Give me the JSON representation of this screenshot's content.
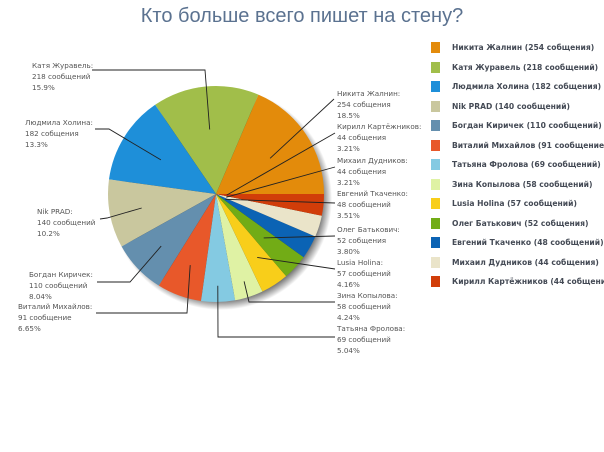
{
  "title": "Кто больше всего пишет на стену?",
  "chart_data": {
    "type": "pie",
    "title": "Кто больше всего пишет на стену?",
    "unit": "сообщений",
    "legend_position": "right",
    "start_angle": "3 o'clock, counter-clockwise",
    "slices": [
      {
        "name": "Никита Жалнин",
        "value": 254,
        "percent": 18.5,
        "color": "#e38b0b"
      },
      {
        "name": "Катя Журавель",
        "value": 218,
        "percent": 15.9,
        "color": "#a1be4a"
      },
      {
        "name": "Людмила Холина",
        "value": 182,
        "percent": 13.3,
        "color": "#1e8fd9"
      },
      {
        "name": "Nik PRAD",
        "value": 140,
        "percent": 10.2,
        "color": "#c9c79e"
      },
      {
        "name": "Богдан Киричек",
        "value": 110,
        "percent": 8.04,
        "color": "#648fae"
      },
      {
        "name": "Виталий Михайлов",
        "value": 91,
        "percent": 6.65,
        "color": "#e8582a"
      },
      {
        "name": "Татьяна Фролова",
        "value": 69,
        "percent": 5.04,
        "color": "#84cae2"
      },
      {
        "name": "Зина Копылова",
        "value": 58,
        "percent": 4.24,
        "color": "#dff2a4"
      },
      {
        "name": "Lusia Holina",
        "value": 57,
        "percent": 4.16,
        "color": "#f8ce1a"
      },
      {
        "name": "Олег Батькович",
        "value": 52,
        "percent": 3.8,
        "color": "#72ac16"
      },
      {
        "name": "Евгений Ткаченко",
        "value": 48,
        "percent": 3.51,
        "color": "#0b63b4"
      },
      {
        "name": "Михаил Дудников",
        "value": 44,
        "percent": 3.21,
        "color": "#eae4c9"
      },
      {
        "name": "Кирилл Картёжников",
        "value": 44,
        "percent": 3.21,
        "color": "#d13d09"
      }
    ]
  },
  "legend": [
    {
      "label": "Никита Жалнин (254 собщения)",
      "color": "#e38b0b"
    },
    {
      "label": "Катя Журавель (218 сообщений)",
      "color": "#a1be4a"
    },
    {
      "label": "Людмила Холина (182 собщения)",
      "color": "#1e8fd9"
    },
    {
      "label": "Nik PRAD (140 сообщений)",
      "color": "#c9c79e"
    },
    {
      "label": "Богдан Киричек (110 сообщений)",
      "color": "#648fae"
    },
    {
      "label": "Виталий Михайлов (91 сообщение)",
      "color": "#e8582a"
    },
    {
      "label": "Татьяна Фролова (69 сообщений)",
      "color": "#84cae2"
    },
    {
      "label": "Зина Копылова (58 сообщений)",
      "color": "#dff2a4"
    },
    {
      "label": "Lusia Holina (57 сообщений)",
      "color": "#f8ce1a"
    },
    {
      "label": "Олег Батькович (52 собщения)",
      "color": "#72ac16"
    },
    {
      "label": "Евгений Ткаченко (48 сообщений)",
      "color": "#0b63b4"
    },
    {
      "label": "Михаил Дудников (44 собщения)",
      "color": "#eae4c9"
    },
    {
      "label": "Кирилл Картёжников (44 собщения)",
      "color": "#d13d09"
    }
  ],
  "pie_labels": [
    {
      "name": "Никита Жалнин:",
      "count": "254 собщения",
      "pct": "18.5%"
    },
    {
      "name": "Катя Журавель:",
      "count": "218 сообщений",
      "pct": "15.9%"
    },
    {
      "name": "Людмила Холина:",
      "count": "182 собщения",
      "pct": "13.3%"
    },
    {
      "name": "Nik PRAD:",
      "count": "140 сообщений",
      "pct": "10.2%"
    },
    {
      "name": "Богдан Киричек:",
      "count": "110 сообщений",
      "pct": "8.04%"
    },
    {
      "name": "Виталий Михайлов:",
      "count": "91 сообщение",
      "pct": "6.65%"
    },
    {
      "name": "Татьяна Фролова:",
      "count": "69 сообщений",
      "pct": "5.04%"
    },
    {
      "name": "Зина Копылова:",
      "count": "58 сообщений",
      "pct": "4.24%"
    },
    {
      "name": "Lusia Holina:",
      "count": "57 сообщений",
      "pct": "4.16%"
    },
    {
      "name": "Олег Батькович:",
      "count": "52 собщения",
      "pct": "3.80%"
    },
    {
      "name": "Евгений Ткаченко:",
      "count": "48 сообщений",
      "pct": "3.51%"
    },
    {
      "name": "Михаил Дудников:",
      "count": "44 собщения",
      "pct": "3.21%"
    },
    {
      "name": "Кирилл Картёжников:",
      "count": "44 собщения",
      "pct": "3.21%"
    }
  ]
}
